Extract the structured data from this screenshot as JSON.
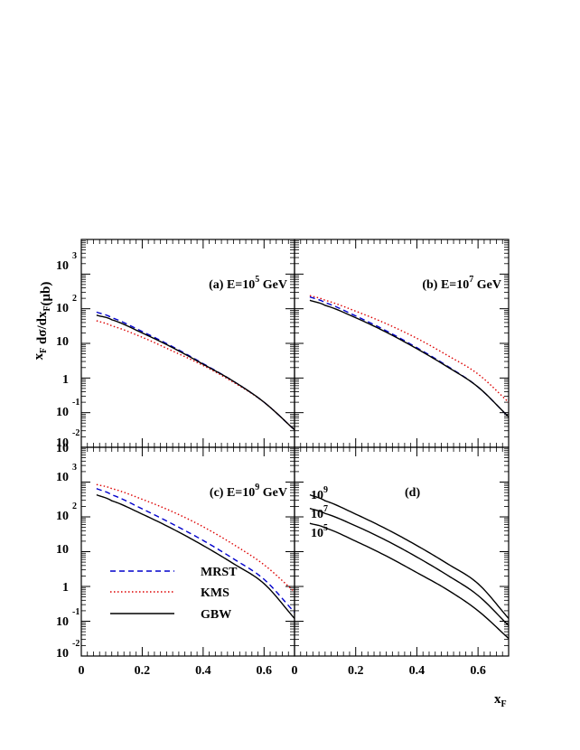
{
  "figure": {
    "ylabel": "x_F dσ/dx_F (μb)",
    "xlabel": "x_F"
  },
  "legend": [
    {
      "label": "MRST",
      "color": "#0000cc",
      "dash": "dashed"
    },
    {
      "label": "KMS",
      "color": "#dd0000",
      "dash": "dotted"
    },
    {
      "label": "GBW",
      "color": "#000000",
      "dash": "solid"
    }
  ],
  "y_tick_labels": [
    "10^-2",
    "10^-1",
    "1",
    "10",
    "10^2",
    "10^3"
  ],
  "x_tick_labels": [
    "0",
    "0.2",
    "0.4",
    "0.6"
  ],
  "colors": {
    "MRST": "#0000cc",
    "KMS": "#dd0000",
    "GBW": "#000000"
  },
  "chart_data": [
    {
      "type": "line",
      "panel": "a",
      "title": "(a)  E=10^5 GeV",
      "xlim": [
        0,
        0.7
      ],
      "ylim": [
        0.01,
        10000
      ],
      "yscale": "log",
      "series": [
        {
          "name": "MRST",
          "x": [
            0.05,
            0.1,
            0.2,
            0.3,
            0.4,
            0.5,
            0.6,
            0.7
          ],
          "y": [
            80,
            55,
            22,
            8,
            2.6,
            0.8,
            0.2,
            0.032
          ]
        },
        {
          "name": "KMS",
          "x": [
            0.05,
            0.1,
            0.2,
            0.3,
            0.4,
            0.5,
            0.6,
            0.7
          ],
          "y": [
            45,
            32,
            15,
            6,
            2.3,
            0.75,
            0.2,
            0.032
          ]
        },
        {
          "name": "GBW",
          "x": [
            0.05,
            0.1,
            0.2,
            0.3,
            0.4,
            0.5,
            0.6,
            0.7
          ],
          "y": [
            65,
            48,
            20,
            7.5,
            2.5,
            0.8,
            0.2,
            0.032
          ]
        }
      ]
    },
    {
      "type": "line",
      "panel": "b",
      "title": "(b)  E=10^7 GeV",
      "xlim": [
        0,
        0.7
      ],
      "ylim": [
        0.01,
        10000
      ],
      "yscale": "log",
      "series": [
        {
          "name": "MRST",
          "x": [
            0.05,
            0.1,
            0.2,
            0.3,
            0.4,
            0.5,
            0.6,
            0.7
          ],
          "y": [
            220,
            150,
            62,
            23,
            7.5,
            2.2,
            0.55,
            0.075
          ]
        },
        {
          "name": "KMS",
          "x": [
            0.05,
            0.1,
            0.2,
            0.3,
            0.4,
            0.5,
            0.6,
            0.7
          ],
          "y": [
            240,
            175,
            85,
            37,
            14,
            4.5,
            1.3,
            0.2
          ]
        },
        {
          "name": "GBW",
          "x": [
            0.05,
            0.1,
            0.2,
            0.3,
            0.4,
            0.5,
            0.6,
            0.7
          ],
          "y": [
            175,
            125,
            55,
            21,
            7,
            2.1,
            0.55,
            0.075
          ]
        }
      ]
    },
    {
      "type": "line",
      "panel": "c",
      "title": "(c)  E=10^9 GeV",
      "xlim": [
        0,
        0.7
      ],
      "ylim": [
        0.01,
        10000
      ],
      "yscale": "log",
      "series": [
        {
          "name": "MRST",
          "x": [
            0.05,
            0.1,
            0.2,
            0.3,
            0.4,
            0.5,
            0.6,
            0.7
          ],
          "y": [
            650,
            430,
            170,
            62,
            21,
            6.2,
            1.6,
            0.18
          ]
        },
        {
          "name": "KMS",
          "x": [
            0.05,
            0.1,
            0.2,
            0.3,
            0.4,
            0.5,
            0.6,
            0.7
          ],
          "y": [
            850,
            650,
            320,
            140,
            52,
            16,
            4.2,
            0.7
          ]
        },
        {
          "name": "GBW",
          "x": [
            0.05,
            0.1,
            0.2,
            0.3,
            0.4,
            0.5,
            0.6,
            0.7
          ],
          "y": [
            430,
            290,
            120,
            45,
            15,
            4.5,
            1.2,
            0.12
          ]
        }
      ]
    },
    {
      "type": "line",
      "panel": "d",
      "title": "(d)",
      "xlim": [
        0,
        0.7
      ],
      "ylim": [
        0.01,
        10000
      ],
      "yscale": "log",
      "curve_labels": [
        "10^9",
        "10^7",
        "10^5"
      ],
      "series": [
        {
          "name": "10^9",
          "x": [
            0.05,
            0.1,
            0.2,
            0.3,
            0.4,
            0.5,
            0.6,
            0.7
          ],
          "y": [
            430,
            290,
            120,
            45,
            15,
            4.5,
            1.2,
            0.12
          ]
        },
        {
          "name": "10^7",
          "x": [
            0.05,
            0.1,
            0.2,
            0.3,
            0.4,
            0.5,
            0.6,
            0.7
          ],
          "y": [
            175,
            125,
            55,
            21,
            7,
            2.1,
            0.55,
            0.075
          ]
        },
        {
          "name": "10^5",
          "x": [
            0.05,
            0.1,
            0.2,
            0.3,
            0.4,
            0.5,
            0.6,
            0.7
          ],
          "y": [
            65,
            48,
            20,
            7.5,
            2.5,
            0.8,
            0.2,
            0.032
          ]
        }
      ]
    }
  ]
}
